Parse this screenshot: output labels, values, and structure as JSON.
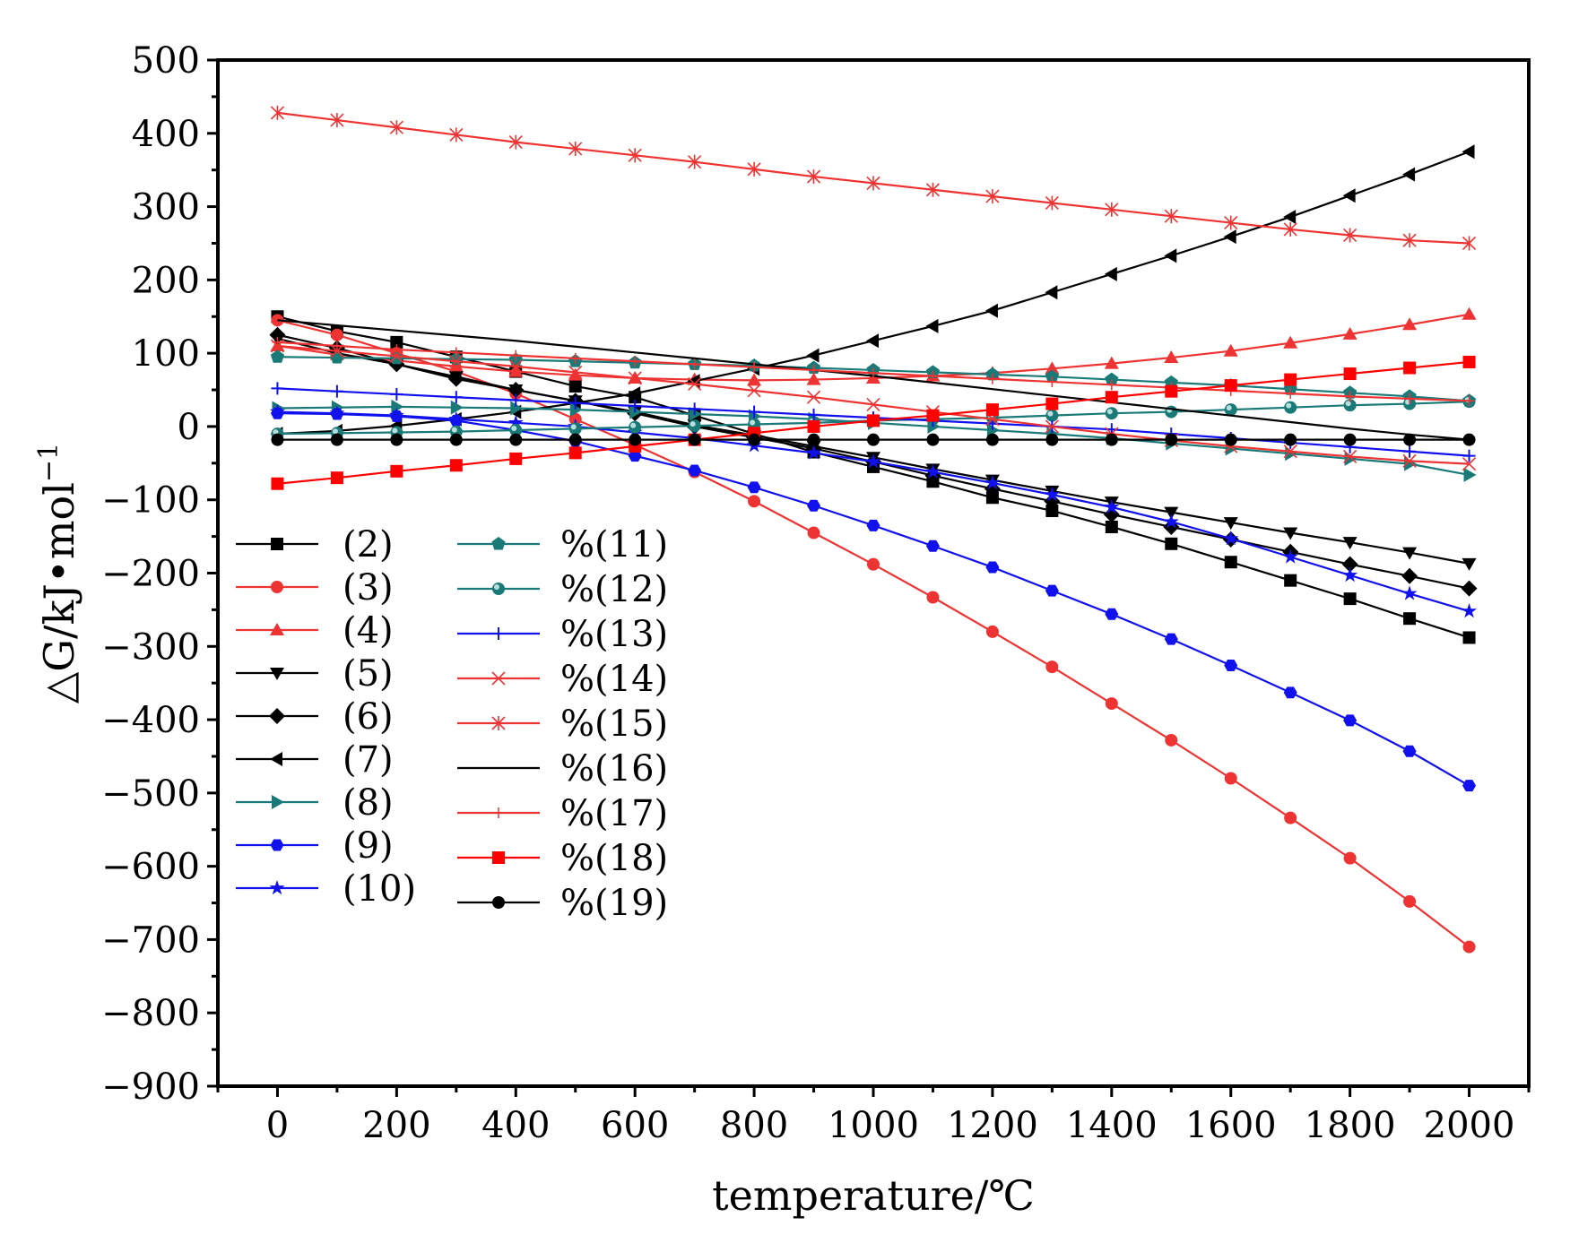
{
  "chart_data": {
    "type": "line",
    "title": "",
    "xlabel": "temperature/℃",
    "ylabel": "△G/kJ•mol",
    "ylabel_sup": "−1",
    "xlim": [
      -100,
      2100
    ],
    "ylim": [
      -900,
      500
    ],
    "x_ticks": [
      0,
      200,
      400,
      600,
      800,
      1000,
      1200,
      1400,
      1600,
      1800,
      2000
    ],
    "x_tick_labels": [
      "0",
      "200",
      "400",
      "600",
      "800",
      "1000",
      "1200",
      "1400",
      "1600",
      "1800",
      "2000"
    ],
    "y_ticks": [
      500,
      400,
      300,
      200,
      100,
      0,
      -100,
      -200,
      -300,
      -400,
      -500,
      -600,
      -700,
      -800,
      -900
    ],
    "y_tick_labels": [
      "500",
      "400",
      "300",
      "200",
      "100",
      "0",
      "−100",
      "−200",
      "−300",
      "−400",
      "−500",
      "−600",
      "−700",
      "−800",
      "−900"
    ],
    "x": [
      0,
      100,
      200,
      300,
      400,
      500,
      600,
      700,
      800,
      900,
      1000,
      1100,
      1200,
      1300,
      1400,
      1500,
      1600,
      1700,
      1800,
      1900,
      2000
    ],
    "legend_position": "lower-left",
    "series": [
      {
        "name": "(2)",
        "color": "#000000",
        "marker": "square",
        "values": [
          150,
          130,
          115,
          95,
          75,
          55,
          40,
          15,
          -10,
          -35,
          -55,
          -75,
          -97,
          -115,
          -137,
          -160,
          -185,
          -210,
          -235,
          -262,
          -288
        ]
      },
      {
        "name": "(3)",
        "color": "#ee3333",
        "marker": "circle",
        "values": [
          145,
          125,
          100,
          75,
          45,
          10,
          -25,
          -62,
          -102,
          -145,
          -188,
          -233,
          -280,
          -328,
          -378,
          -428,
          -480,
          -534,
          -589,
          -648,
          -710
        ]
      },
      {
        "name": "(4)",
        "color": "#ee3333",
        "marker": "triangle-up",
        "values": [
          110,
          98,
          90,
          82,
          75,
          70,
          66,
          64,
          63,
          64,
          66,
          69,
          73,
          79,
          86,
          94,
          103,
          114,
          126,
          139,
          153
        ]
      },
      {
        "name": "(5)",
        "color": "#000000",
        "marker": "triangle-down",
        "values": [
          120,
          100,
          85,
          68,
          50,
          35,
          20,
          2,
          -12,
          -27,
          -42,
          -58,
          -73,
          -88,
          -103,
          -117,
          -131,
          -145,
          -158,
          -172,
          -187
        ]
      },
      {
        "name": "(6)",
        "color": "#000000",
        "marker": "diamond",
        "values": [
          125,
          107,
          85,
          65,
          50,
          35,
          18,
          0,
          -15,
          -30,
          -48,
          -67,
          -85,
          -102,
          -120,
          -137,
          -154,
          -171,
          -188,
          -204,
          -221
        ]
      },
      {
        "name": "(7)",
        "color": "#000000",
        "marker": "triangle-left",
        "values": [
          -10,
          -6,
          1,
          10,
          20,
          32,
          45,
          62,
          79,
          97,
          117,
          137,
          158,
          183,
          208,
          233,
          259,
          286,
          315,
          344,
          375
        ]
      },
      {
        "name": "(8)",
        "color": "#1a7a78",
        "marker": "triangle-right",
        "values": [
          25,
          26,
          27,
          26,
          25,
          23,
          20,
          17,
          14,
          10,
          5,
          0,
          -5,
          -10,
          -16,
          -23,
          -30,
          -37,
          -44,
          -51,
          -66
        ]
      },
      {
        "name": "(9)",
        "color": "#1111ee",
        "marker": "hexagon",
        "values": [
          18,
          17,
          14,
          8,
          -5,
          -20,
          -40,
          -60,
          -83,
          -108,
          -135,
          -163,
          -192,
          -224,
          -256,
          -290,
          -326,
          -363,
          -401,
          -443,
          -490
        ]
      },
      {
        "name": "(10)",
        "color": "#1111ee",
        "marker": "star",
        "values": [
          20,
          18,
          15,
          10,
          5,
          0,
          -8,
          -16,
          -26,
          -36,
          -48,
          -62,
          -77,
          -93,
          -110,
          -130,
          -153,
          -178,
          -203,
          -228,
          -252
        ]
      },
      {
        "name": "%(11)",
        "color": "#1a7a78",
        "marker": "pentagon",
        "values": [
          95,
          94,
          93,
          92,
          91,
          89,
          87,
          85,
          83,
          80,
          77,
          74,
          71,
          68,
          64,
          60,
          56,
          51,
          46,
          41,
          35
        ]
      },
      {
        "name": "%(12)",
        "color": "#1a7a78",
        "marker": "circle-shaded",
        "values": [
          -10,
          -9,
          -8,
          -7,
          -5,
          -3,
          -1,
          1,
          3,
          5,
          8,
          10,
          12,
          15,
          18,
          20,
          23,
          26,
          29,
          31,
          34
        ]
      },
      {
        "name": "%(13)",
        "color": "#1111ee",
        "marker": "plus",
        "values": [
          52,
          48,
          44,
          40,
          36,
          32,
          28,
          24,
          20,
          16,
          12,
          8,
          4,
          0,
          -4,
          -10,
          -16,
          -22,
          -28,
          -34,
          -40
        ]
      },
      {
        "name": "%(14)",
        "color": "#ee3333",
        "marker": "x",
        "values": [
          110,
          103,
          96,
          89,
          82,
          74,
          66,
          58,
          49,
          40,
          30,
          20,
          10,
          0,
          -10,
          -19,
          -27,
          -34,
          -41,
          -47,
          -51
        ]
      },
      {
        "name": "%(15)",
        "color": "#ee3333",
        "marker": "asterisk",
        "values": [
          428,
          418,
          408,
          398,
          388,
          379,
          370,
          361,
          351,
          341,
          332,
          323,
          314,
          305,
          296,
          287,
          278,
          269,
          261,
          254,
          250
        ]
      },
      {
        "name": "%(16)",
        "color": "#000000",
        "marker": "none",
        "values": [
          145,
          138,
          131,
          124,
          117,
          109,
          101,
          93,
          85,
          77,
          69,
          60,
          51,
          42,
          33,
          24,
          15,
          6,
          -3,
          -11,
          -18
        ]
      },
      {
        "name": "%(17)",
        "color": "#ee3333",
        "marker": "thin-plus",
        "values": [
          115,
          110,
          105,
          101,
          97,
          93,
          89,
          85,
          81,
          77,
          73,
          69,
          65,
          61,
          57,
          53,
          49,
          45,
          41,
          38,
          35
        ]
      },
      {
        "name": "%(18)",
        "color": "#ff0000",
        "marker": "square",
        "values": [
          -78,
          -70,
          -61,
          -53,
          -44,
          -36,
          -27,
          -18,
          -9,
          0,
          8,
          15,
          23,
          31,
          40,
          48,
          56,
          64,
          72,
          80,
          88
        ]
      },
      {
        "name": "%(19)",
        "color": "#000000",
        "marker": "circle",
        "values": [
          -18,
          -18,
          -18,
          -18,
          -18,
          -18,
          -18,
          -18,
          -18,
          -18,
          -18,
          -18,
          -18,
          -18,
          -18,
          -18,
          -18,
          -18,
          -18,
          -18,
          -18
        ]
      }
    ]
  }
}
